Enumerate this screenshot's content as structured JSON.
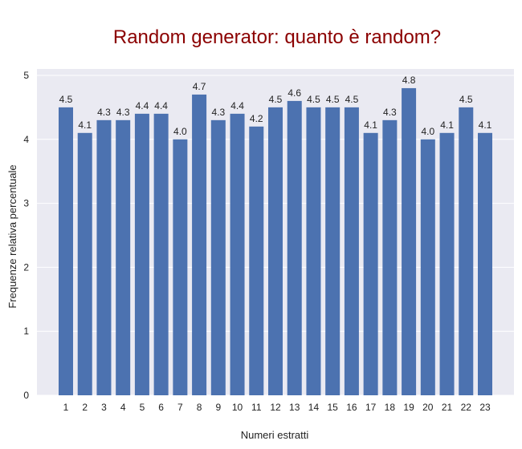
{
  "chart_data": {
    "type": "bar",
    "title": "Random generator: quanto è random?",
    "xlabel": "Numeri estratti",
    "ylabel": "Frequenze relativa percentuale",
    "categories": [
      "1",
      "2",
      "3",
      "4",
      "5",
      "6",
      "7",
      "8",
      "9",
      "10",
      "11",
      "12",
      "13",
      "14",
      "15",
      "16",
      "17",
      "18",
      "19",
      "20",
      "21",
      "22",
      "23"
    ],
    "values": [
      4.5,
      4.1,
      4.3,
      4.3,
      4.4,
      4.4,
      4.0,
      4.7,
      4.3,
      4.4,
      4.2,
      4.5,
      4.6,
      4.5,
      4.5,
      4.5,
      4.1,
      4.3,
      4.8,
      4.0,
      4.1,
      4.5,
      4.1
    ],
    "data_labels": [
      "4.5",
      "4.1",
      "4.3",
      "4.3",
      "4.4",
      "4.4",
      "4.0",
      "4.7",
      "4.3",
      "4.4",
      "4.2",
      "4.5",
      "4.6",
      "4.5",
      "4.5",
      "4.5",
      "4.1",
      "4.3",
      "4.8",
      "4.0",
      "4.1",
      "4.5",
      "4.1"
    ],
    "yticks": [
      "0",
      "1",
      "2",
      "3",
      "4",
      "5"
    ],
    "ylim": [
      0,
      5.1
    ],
    "grid": true,
    "colors": {
      "bar": "#4c72b0",
      "plot_background": "#eaeaf2",
      "grid": "#ffffff",
      "title": "#8b0000",
      "text": "#222222"
    }
  }
}
